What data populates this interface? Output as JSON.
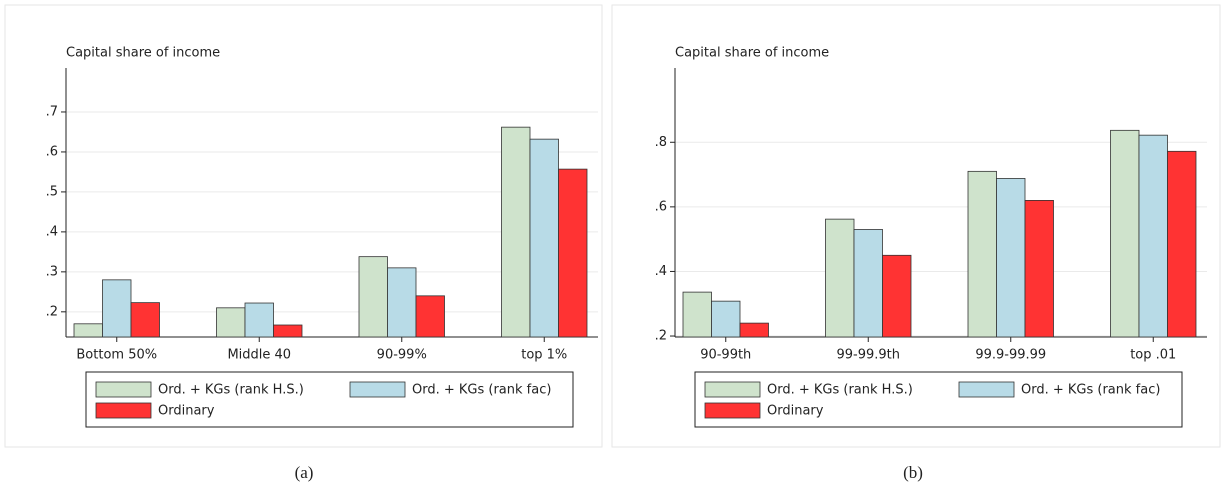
{
  "chart_data": [
    {
      "type": "bar",
      "caption": "(a)",
      "y_label": "Capital share of income",
      "categories": [
        "Bottom 50%",
        "Middle 40",
        "90-99%",
        "top 1%"
      ],
      "series": [
        {
          "name": "Ord. + KGs (rank H.S.)",
          "color": "#cfe3cc",
          "values": [
            0.17,
            0.21,
            0.338,
            0.662
          ]
        },
        {
          "name": "Ord. + KGs (rank fac)",
          "color": "#b8dbe7",
          "values": [
            0.28,
            0.222,
            0.31,
            0.632
          ]
        },
        {
          "name": "Ordinary",
          "color": "#ff3333",
          "values": [
            0.223,
            0.167,
            0.24,
            0.557
          ]
        }
      ],
      "ylim": [
        0.137,
        0.81
      ],
      "yticks": [
        {
          "value": 0.2,
          "label": ".2"
        },
        {
          "value": 0.3,
          "label": ".3"
        },
        {
          "value": 0.4,
          "label": ".4"
        },
        {
          "value": 0.5,
          "label": ".5"
        },
        {
          "value": 0.6,
          "label": ".6"
        },
        {
          "value": 0.7,
          "label": ".7"
        }
      ],
      "grid": true
    },
    {
      "type": "bar",
      "caption": "(b)",
      "y_label": "Capital share of income",
      "categories": [
        "90-99th",
        "99-99.9th",
        "99.9-99.99",
        "top .01"
      ],
      "series": [
        {
          "name": "Ord. + KGs (rank H.S.)",
          "color": "#cfe3cc",
          "values": [
            0.336,
            0.562,
            0.71,
            0.837
          ]
        },
        {
          "name": "Ord. + KGs (rank fac)",
          "color": "#b8dbe7",
          "values": [
            0.308,
            0.53,
            0.688,
            0.822
          ]
        },
        {
          "name": "Ordinary",
          "color": "#ff3333",
          "values": [
            0.24,
            0.45,
            0.62,
            0.772
          ]
        }
      ],
      "ylim": [
        0.197,
        1.03
      ],
      "yticks": [
        {
          "value": 0.2,
          "label": ".2"
        },
        {
          "value": 0.4,
          "label": ".4"
        },
        {
          "value": 0.6,
          "label": ".6"
        },
        {
          "value": 0.8,
          "label": ".8"
        }
      ],
      "grid": true
    }
  ]
}
